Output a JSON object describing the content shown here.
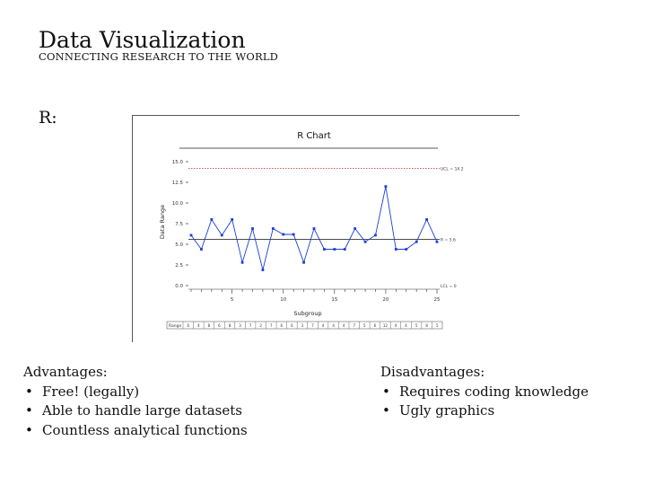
{
  "header": {
    "title": "Data Visualization",
    "subtitle": "CONNECTING RESEARCH TO THE WORLD"
  },
  "section_label": "R:",
  "chart_data": {
    "type": "line",
    "title": "R Chart",
    "xlabel": "Subgroup",
    "ylabel": "Data Range",
    "x": [
      1,
      2,
      3,
      4,
      5,
      6,
      7,
      8,
      9,
      10,
      11,
      12,
      13,
      14,
      15,
      16,
      17,
      18,
      19,
      20,
      21,
      22,
      23,
      24,
      25
    ],
    "values": [
      6.1,
      4.4,
      8.0,
      6.1,
      8.0,
      2.8,
      6.9,
      1.9,
      6.9,
      6.2,
      6.2,
      2.8,
      6.9,
      4.4,
      4.4,
      4.4,
      6.9,
      5.3,
      6.1,
      12.0,
      4.4,
      4.4,
      5.3,
      8.0,
      5.3
    ],
    "center_line": 5.6,
    "ucl": 14.2,
    "ucl_label": "UCL = 14.2",
    "center_label": "R = 5.6",
    "lcl_label": "LCL = 0",
    "ylim": [
      0,
      15
    ],
    "yticks": [
      "0.0",
      "2.5",
      "5.0",
      "7.5",
      "10.0",
      "12.5",
      "15.0"
    ],
    "xticks": [
      "5",
      "10",
      "15",
      "20",
      "25"
    ],
    "table_header": "Range",
    "table_values": [
      "6",
      "4",
      "8",
      "6",
      "8",
      "3",
      "7",
      "2",
      "7",
      "6",
      "6",
      "3",
      "7",
      "4",
      "4",
      "4",
      "7",
      "5",
      "6",
      "12",
      "4",
      "4",
      "5",
      "8",
      "5"
    ],
    "grid": false,
    "line_color": "#1a3fd4",
    "limit_color": "#cc2222"
  },
  "advantages": {
    "heading": "Advantages:",
    "items": [
      "Free! (legally)",
      "Able to handle large datasets",
      "Countless analytical functions"
    ]
  },
  "disadvantages": {
    "heading": "Disadvantages:",
    "items": [
      "Requires coding knowledge",
      "Ugly graphics"
    ]
  }
}
